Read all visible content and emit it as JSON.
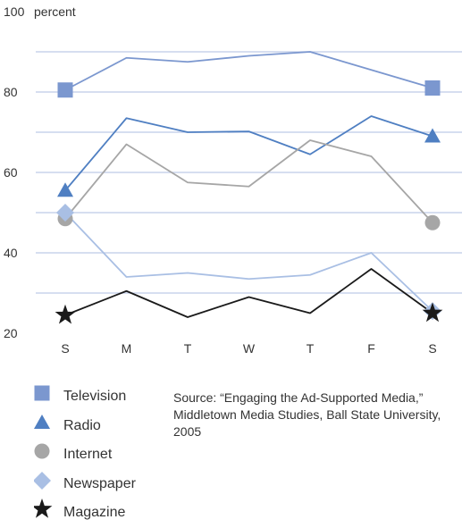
{
  "chart_data": {
    "type": "line",
    "y_unit": "percent",
    "ylim": [
      20,
      100
    ],
    "yticks": [
      20,
      40,
      60,
      80,
      100
    ],
    "grid": true,
    "legend_placement": "bottom-left",
    "categories": [
      "S",
      "M",
      "T",
      "W",
      "T",
      "F",
      "S"
    ],
    "series": [
      {
        "name": "Television",
        "color": "#7b97cf",
        "marker": "square",
        "values": [
          80.5,
          88.5,
          87.5,
          89,
          90,
          85.5,
          81
        ]
      },
      {
        "name": "Radio",
        "color": "#4f7fc2",
        "marker": "triangle",
        "values": [
          55.5,
          73.5,
          70,
          70.2,
          64.5,
          74,
          69
        ]
      },
      {
        "name": "Internet",
        "color": "#a6a6a6",
        "marker": "circle",
        "values": [
          48.5,
          67,
          57.5,
          56.5,
          68,
          64,
          47.5
        ]
      },
      {
        "name": "Newspaper",
        "color": "#a9bfe4",
        "marker": "diamond",
        "values": [
          50,
          34,
          35,
          33.5,
          34.5,
          40,
          25.5
        ]
      },
      {
        "name": "Magazine",
        "color": "#1a1a1a",
        "marker": "star",
        "values": [
          24.5,
          30.5,
          24,
          29,
          25,
          36,
          25
        ]
      }
    ],
    "source": "Source: “Engaging the Ad-Supported Media,” Middletown Media Studies, Ball State University, 2005"
  }
}
